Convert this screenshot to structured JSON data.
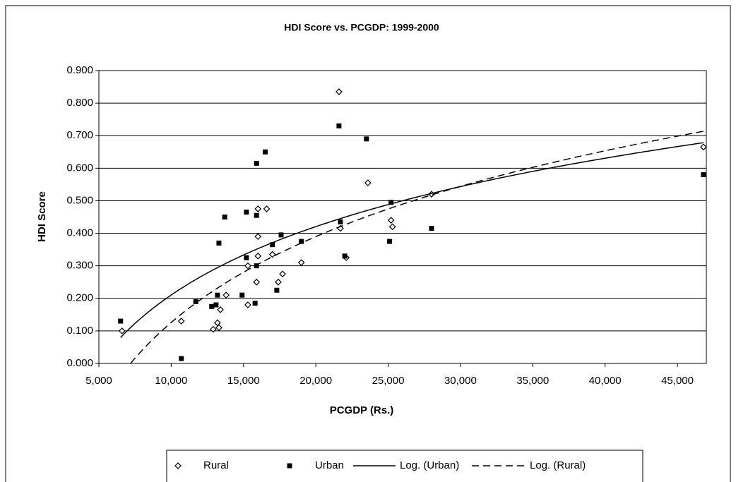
{
  "chart_data": {
    "type": "scatter",
    "title": "HDI Score vs. PCGDP: 1999-2000",
    "x_label": "PCGDP (Rs.)",
    "y_label": "HDI Score",
    "xlim": [
      5000,
      47000
    ],
    "ylim": [
      0,
      0.9
    ],
    "xticks": [
      {
        "value": 5000,
        "label": "5,000"
      },
      {
        "value": 10000,
        "label": "10,000"
      },
      {
        "value": 15000,
        "label": "15,000"
      },
      {
        "value": 20000,
        "label": "20,000"
      },
      {
        "value": 25000,
        "label": "25,000"
      },
      {
        "value": 30000,
        "label": "30,000"
      },
      {
        "value": 35000,
        "label": "35,000"
      },
      {
        "value": 40000,
        "label": "40,000"
      },
      {
        "value": 45000,
        "label": "45,000"
      }
    ],
    "yticks": [
      {
        "value": 0,
        "label": "0.000"
      },
      {
        "value": 0.1,
        "label": "0.100"
      },
      {
        "value": 0.2,
        "label": "0.200"
      },
      {
        "value": 0.3,
        "label": "0.300"
      },
      {
        "value": 0.4,
        "label": "0.400"
      },
      {
        "value": 0.5,
        "label": "0.500"
      },
      {
        "value": 0.6,
        "label": "0.600"
      },
      {
        "value": 0.7,
        "label": "0.700"
      },
      {
        "value": 0.8,
        "label": "0.800"
      },
      {
        "value": 0.9,
        "label": "0.900"
      }
    ],
    "grid": true,
    "legend": "bottom",
    "series": [
      {
        "name": "Rural",
        "marker": "diamond",
        "color": "#000000",
        "x": [
          6600,
          10700,
          12900,
          13200,
          13300,
          13400,
          13800,
          15300,
          15300,
          15900,
          16000,
          16000,
          16000,
          16600,
          17000,
          17400,
          17700,
          19000,
          21600,
          21700,
          22100,
          23600,
          25200,
          25300,
          28000,
          46800
        ],
        "values": [
          0.1,
          0.13,
          0.105,
          0.125,
          0.11,
          0.165,
          0.21,
          0.18,
          0.3,
          0.25,
          0.33,
          0.39,
          0.475,
          0.475,
          0.335,
          0.25,
          0.275,
          0.31,
          0.835,
          0.415,
          0.325,
          0.555,
          0.44,
          0.42,
          0.52,
          0.665
        ],
        "trendline": {
          "name": "Log. (Rural)",
          "type": "log",
          "dash": "dashed"
        }
      },
      {
        "name": "Urban",
        "marker": "square",
        "color": "#000000",
        "x": [
          6500,
          10700,
          11700,
          12800,
          13100,
          13200,
          13300,
          13700,
          14900,
          15200,
          15200,
          15800,
          15900,
          15900,
          15900,
          16500,
          17000,
          17300,
          17600,
          19000,
          21600,
          21700,
          22000,
          23500,
          25100,
          25200,
          28000,
          46800
        ],
        "values": [
          0.13,
          0.015,
          0.19,
          0.175,
          0.18,
          0.21,
          0.37,
          0.45,
          0.21,
          0.465,
          0.325,
          0.185,
          0.615,
          0.455,
          0.3,
          0.65,
          0.365,
          0.225,
          0.395,
          0.375,
          0.73,
          0.435,
          0.33,
          0.69,
          0.375,
          0.495,
          0.415,
          0.58
        ],
        "trendline": {
          "name": "Log. (Urban)",
          "type": "log",
          "dash": "solid"
        }
      }
    ]
  }
}
